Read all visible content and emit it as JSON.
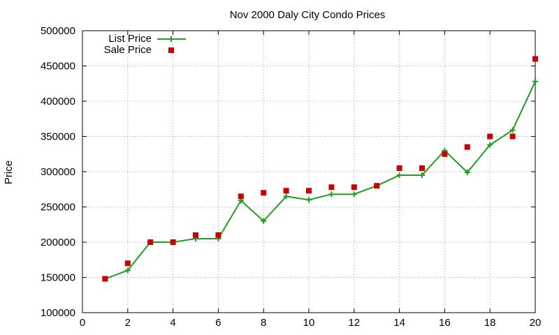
{
  "chart_data": {
    "type": "line",
    "title": "Nov 2000 Daly City Condo Prices",
    "xlabel": "",
    "ylabel": "Price",
    "xlim": [
      0,
      20
    ],
    "ylim": [
      100000,
      500000
    ],
    "xticks": [
      0,
      2,
      4,
      6,
      8,
      10,
      12,
      14,
      16,
      18,
      20
    ],
    "yticks": [
      100000,
      150000,
      200000,
      250000,
      300000,
      350000,
      400000,
      450000,
      500000
    ],
    "grid": true,
    "legend_position": "top-left",
    "series": [
      {
        "name": "List Price",
        "style": "line-with-plus-markers",
        "color": "#1f9f1f",
        "x": [
          1,
          2,
          3,
          4,
          5,
          6,
          7,
          8,
          9,
          10,
          11,
          12,
          13,
          14,
          15,
          16,
          17,
          18,
          19,
          20
        ],
        "values": [
          148000,
          160000,
          200000,
          200000,
          205000,
          205000,
          259000,
          230000,
          265000,
          260000,
          268000,
          268000,
          280000,
          295000,
          295000,
          330000,
          299000,
          338000,
          359000,
          428000
        ]
      },
      {
        "name": "Sale Price",
        "style": "square-markers",
        "color": "#cc0000",
        "x": [
          1,
          2,
          3,
          4,
          5,
          6,
          7,
          8,
          9,
          10,
          11,
          12,
          13,
          14,
          15,
          16,
          17,
          18,
          19,
          20
        ],
        "values": [
          148000,
          170000,
          200000,
          200000,
          210000,
          210000,
          265000,
          270000,
          273000,
          273000,
          278000,
          278000,
          280000,
          305000,
          305000,
          325000,
          335000,
          350000,
          350000,
          460000
        ]
      }
    ]
  }
}
